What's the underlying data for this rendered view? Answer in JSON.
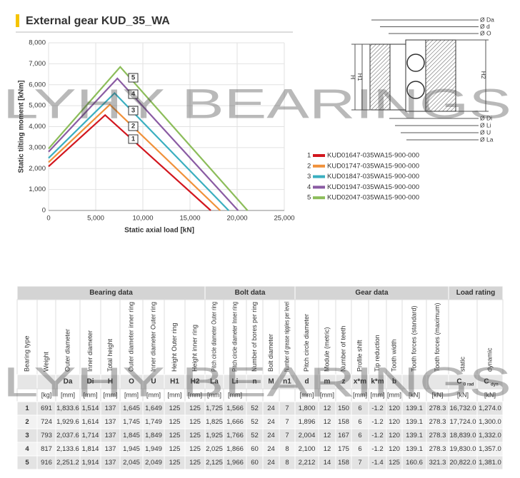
{
  "header": {
    "title": "External gear KUD_35_WA"
  },
  "watermark": "LYHY BEARINGS",
  "chart_data": {
    "type": "line",
    "x_label": "Static axial load [kN]",
    "y_label": "Static tilting moment [kNm]",
    "xlim": [
      0,
      25000
    ],
    "xticks": [
      0,
      {
        "value": 5000,
        "label": "5,000"
      },
      {
        "value": 10000,
        "label": "10,000"
      },
      {
        "value": 15000,
        "label": "15,000"
      },
      {
        "value": 20000,
        "label": "20,000"
      },
      {
        "value": 25000,
        "label": "25,000"
      }
    ],
    "ylim": [
      0,
      8000
    ],
    "yticks": [
      0,
      {
        "value": 1000,
        "label": "1,000"
      },
      {
        "value": 2000,
        "label": "2,000"
      },
      {
        "value": 3000,
        "label": "3,000"
      },
      {
        "value": 4000,
        "label": "4,000"
      },
      {
        "value": 5000,
        "label": "5,000"
      },
      {
        "value": 6000,
        "label": "6,000"
      },
      {
        "value": 7000,
        "label": "7,000"
      },
      {
        "value": 8000,
        "label": "8,000"
      }
    ],
    "grid": true,
    "series": [
      {
        "label": "1",
        "name": "KUD01647-035WA15-900-000",
        "color": "#d2161e",
        "x": [
          0,
          6000,
          17200
        ],
        "values": [
          2100,
          4550,
          0
        ]
      },
      {
        "label": "2",
        "name": "KUD01747-035WA15-900-000",
        "color": "#f0913a",
        "x": [
          0,
          6500,
          18200
        ],
        "values": [
          2300,
          5050,
          0
        ]
      },
      {
        "label": "3",
        "name": "KUD01847-035WA15-900-000",
        "color": "#3aafc0",
        "x": [
          0,
          7000,
          19100
        ],
        "values": [
          2500,
          5600,
          0
        ]
      },
      {
        "label": "4",
        "name": "KUD01947-035WA15-900-000",
        "color": "#8a5ba3",
        "x": [
          0,
          7300,
          20100
        ],
        "values": [
          2800,
          6300,
          0
        ]
      },
      {
        "label": "5",
        "name": "KUD02047-035WA15-900-000",
        "color": "#8cbd5a",
        "x": [
          0,
          7600,
          21100
        ],
        "values": [
          2950,
          6850,
          0
        ]
      }
    ]
  },
  "diagram": {
    "top_labels": [
      "Ø Da",
      "Ø d",
      "Ø O"
    ],
    "bottom_labels": [
      "Ø Di",
      "Ø Li",
      "Ø U",
      "Ø La"
    ],
    "heights": [
      "H",
      "H1",
      "H2"
    ]
  },
  "table": {
    "groups": [
      "Bearing data",
      "Bolt data",
      "Gear data",
      "Load rating"
    ],
    "columns": [
      {
        "title": "Bearing type"
      },
      {
        "title": "Weight",
        "unit": "[kg]"
      },
      {
        "title": "Outer diameter",
        "symbol": "Da",
        "unit": "[mm]"
      },
      {
        "title": "Inner diameter",
        "symbol": "Di",
        "unit": "[mm]"
      },
      {
        "title": "Total height",
        "symbol": "H",
        "unit": "[mm]"
      },
      {
        "title": "Outer diameter inner ring",
        "symbol": "O",
        "unit": "[mm]"
      },
      {
        "title": "Inner diameter Outer ring",
        "symbol": "U",
        "unit": "[mm]"
      },
      {
        "title": "Height Outer ring",
        "symbol": "H1",
        "unit": "[mm]"
      },
      {
        "title": "Height inner ring",
        "symbol": "H2",
        "unit": "[mm]"
      },
      {
        "title": "Pitch circle diameter Outer ring",
        "symbol": "La",
        "unit": "[mm]"
      },
      {
        "title": "Pitch circle diameter Inner ring",
        "symbol": "Li",
        "unit": "[mm]"
      },
      {
        "title": "Number of bores per ring",
        "symbol": "n"
      },
      {
        "title": "Bolt diameter",
        "symbol": "M"
      },
      {
        "title": "Number of grease nipples per level",
        "symbol": "n1"
      },
      {
        "title": "Pitch circle diameter",
        "symbol": "d",
        "unit": "[mm]"
      },
      {
        "title": "Module (metric)",
        "symbol": "m",
        "unit": "[mm]"
      },
      {
        "title": "Number of teeth",
        "symbol": "z"
      },
      {
        "title": "Profile shift",
        "symbol": "x*m",
        "unit": "[mm]"
      },
      {
        "title": "Tip reduction",
        "symbol": "k*m",
        "unit": "[mm]"
      },
      {
        "title": "Tooth width",
        "symbol": "b",
        "unit": "[mm]"
      },
      {
        "title": "Tooth forces (standard)",
        "unit": "[kN]"
      },
      {
        "title": "Tooth forces (maximum)",
        "unit": "[kN]"
      },
      {
        "title": "static",
        "symbol": "C",
        "sub": "0 rad",
        "unit": "[kN]"
      },
      {
        "title": "dynamic",
        "symbol": "C",
        "sub": "dyn",
        "unit": "[kN]"
      }
    ],
    "rows": [
      [
        "1",
        "691",
        "1,833.6",
        "1,514",
        "137",
        "1,645",
        "1,649",
        "125",
        "125",
        "1,725",
        "1,566",
        "52",
        "24",
        "7",
        "1,800",
        "12",
        "150",
        "6",
        "-1.2",
        "120",
        "139.1",
        "278.3",
        "16,732.0",
        "1,274.0"
      ],
      [
        "2",
        "724",
        "1,929.6",
        "1,614",
        "137",
        "1,745",
        "1,749",
        "125",
        "125",
        "1,825",
        "1,666",
        "52",
        "24",
        "7",
        "1,896",
        "12",
        "158",
        "6",
        "-1.2",
        "120",
        "139.1",
        "278.3",
        "17,724.0",
        "1,300.0"
      ],
      [
        "3",
        "793",
        "2,037.6",
        "1,714",
        "137",
        "1,845",
        "1,849",
        "125",
        "125",
        "1,925",
        "1,766",
        "52",
        "24",
        "7",
        "2,004",
        "12",
        "167",
        "6",
        "-1.2",
        "120",
        "139.1",
        "278.3",
        "18,839.0",
        "1,332.0"
      ],
      [
        "4",
        "817",
        "2,133.6",
        "1,814",
        "137",
        "1,945",
        "1,949",
        "125",
        "125",
        "2,025",
        "1,866",
        "60",
        "24",
        "8",
        "2,100",
        "12",
        "175",
        "6",
        "-1.2",
        "120",
        "139.1",
        "278.3",
        "19,830.0",
        "1,357.0"
      ],
      [
        "5",
        "916",
        "2,251.2",
        "1,914",
        "137",
        "2,045",
        "2,049",
        "125",
        "125",
        "2,125",
        "1,966",
        "60",
        "24",
        "8",
        "2,212",
        "14",
        "158",
        "7",
        "-1.4",
        "125",
        "160.6",
        "321.3",
        "20,822.0",
        "1,381.0"
      ]
    ]
  }
}
